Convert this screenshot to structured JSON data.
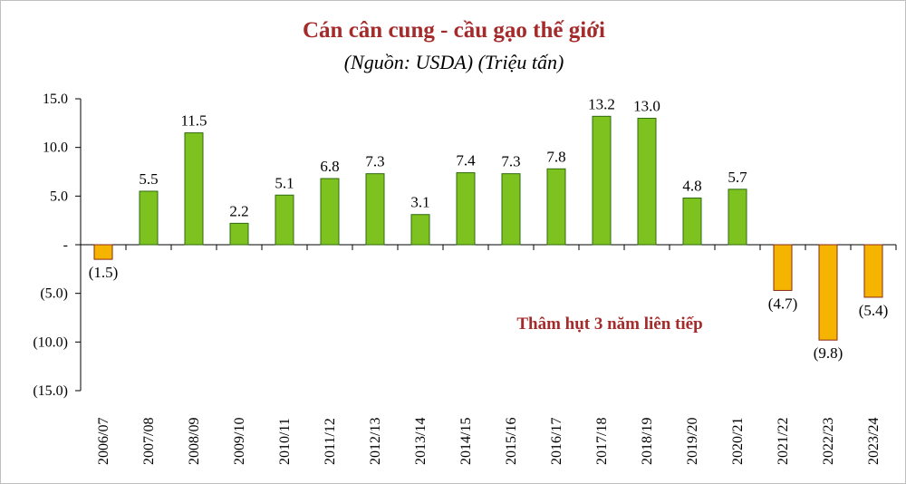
{
  "chart_data": {
    "type": "bar",
    "title": "Cán cân cung - cầu gạo thế giới",
    "subtitle": "(Nguồn: USDA) (Triệu tấn)",
    "categories": [
      "2006/07",
      "2007/08",
      "2008/09",
      "2009/10",
      "2010/11",
      "2011/12",
      "2012/13",
      "2013/14",
      "2014/15",
      "2015/16",
      "2016/17",
      "2017/18",
      "2018/19",
      "2019/20",
      "2020/21",
      "2021/22",
      "2022/23",
      "2023/24"
    ],
    "values": [
      -1.5,
      5.5,
      11.5,
      2.2,
      5.1,
      6.8,
      7.3,
      3.1,
      7.4,
      7.3,
      7.8,
      13.2,
      13.0,
      4.8,
      5.7,
      -4.7,
      -9.8,
      -5.4
    ],
    "data_labels": [
      "(1.5)",
      "5.5",
      "11.5",
      "2.2",
      "5.1",
      "6.8",
      "7.3",
      "3.1",
      "7.4",
      "7.3",
      "7.8",
      "13.2",
      "13.0",
      "4.8",
      "5.7",
      "(4.7)",
      "(9.8)",
      "(5.4)"
    ],
    "yticks": [
      15,
      10,
      5,
      0,
      -5,
      -10,
      -15
    ],
    "ytick_labels": [
      "15.0",
      "10.0",
      "5.0",
      "-",
      "(5.0)",
      "(10.0)",
      "(15.0)"
    ],
    "ylim": [
      -15,
      15
    ],
    "xlabel": "",
    "ylabel": "",
    "grid": false,
    "annotation": "Thâm hụt 3 năm liên tiếp",
    "colors": {
      "positive": "#7dc21e",
      "positive_edge": "#2e6b10",
      "negative": "#f5b400",
      "negative_edge": "#8a2a1a",
      "title": "#a52a2a",
      "annotation": "#a52a2a",
      "axis": "#000000"
    }
  }
}
